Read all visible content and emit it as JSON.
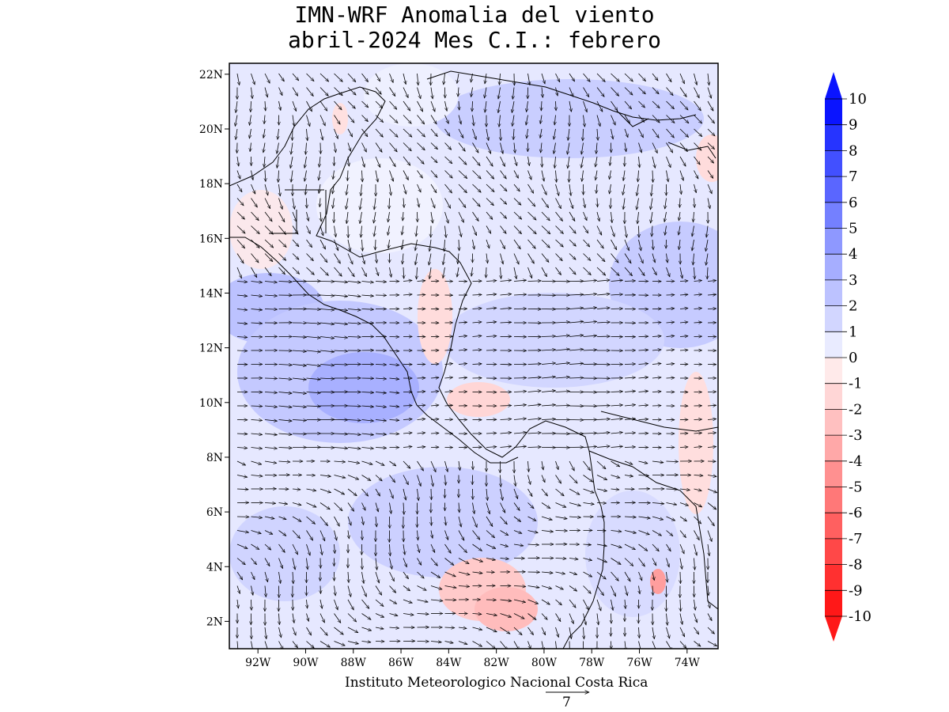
{
  "title": {
    "line1": "IMN-WRF Anomalia del viento",
    "line2": "abril-2024 Mes C.I.: febrero"
  },
  "map": {
    "lat_ticks": [
      "22N",
      "20N",
      "18N",
      "16N",
      "14N",
      "12N",
      "10N",
      "8N",
      "6N",
      "4N",
      "2N"
    ],
    "lon_ticks": [
      "92W",
      "90W",
      "88W",
      "86W",
      "84W",
      "82W",
      "80W",
      "78W",
      "76W",
      "74W"
    ],
    "lat_range": [
      1,
      22.4
    ],
    "lon_range": [
      -93.2,
      -72.7
    ],
    "colorbar": {
      "labels": [
        "10",
        "9",
        "8",
        "7",
        "6",
        "5",
        "4",
        "3",
        "2",
        "1",
        "0",
        "-1",
        "-2",
        "-3",
        "-4",
        "-5",
        "-6",
        "-7",
        "-8",
        "-9",
        "-10"
      ],
      "colors": [
        "#0a14ff",
        "#2634ff",
        "#4250ff",
        "#5a66ff",
        "#7480ff",
        "#8e98ff",
        "#a6aeff",
        "#bcc2ff",
        "#d2d6ff",
        "#e9ebff",
        "#ffeaea",
        "#ffd6d6",
        "#ffc0c0",
        "#ffa8a8",
        "#ff9090",
        "#ff7878",
        "#ff6060",
        "#ff4848",
        "#ff3030",
        "#ff1818"
      ]
    }
  },
  "credit": "Instituto Meteorologico Nacional Costa Rica",
  "reference_vector": {
    "value": "7"
  }
}
